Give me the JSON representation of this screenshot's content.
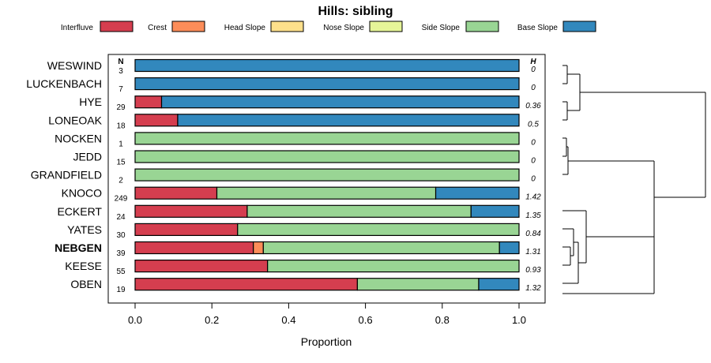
{
  "chart_data": {
    "type": "bar",
    "stacked": true,
    "orientation": "horizontal",
    "title": "Hills: sibling",
    "xlabel": "Proportion",
    "xlim": [
      0,
      1
    ],
    "xticks": [
      "0.0",
      "0.2",
      "0.4",
      "0.6",
      "0.8",
      "1.0"
    ],
    "n_header": "N",
    "h_header": "H",
    "legend": [
      {
        "name": "Interfluve",
        "color": "#D53E4F"
      },
      {
        "name": "Crest",
        "color": "#FC8D59"
      },
      {
        "name": "Head Slope",
        "color": "#FEE08B"
      },
      {
        "name": "Nose Slope",
        "color": "#E6F598"
      },
      {
        "name": "Side Slope",
        "color": "#99D594"
      },
      {
        "name": "Base Slope",
        "color": "#3288BD"
      }
    ],
    "rows": [
      {
        "name": "WESWIND",
        "n": "3",
        "h": "0",
        "bold": false,
        "values": [
          0,
          0,
          0,
          0,
          0,
          1.0
        ]
      },
      {
        "name": "LUCKENBACH",
        "n": "7",
        "h": "0",
        "bold": false,
        "values": [
          0,
          0,
          0,
          0,
          0,
          1.0
        ]
      },
      {
        "name": "HYE",
        "n": "29",
        "h": "0.36",
        "bold": false,
        "values": [
          0.069,
          0,
          0,
          0,
          0,
          0.931
        ]
      },
      {
        "name": "LONEOAK",
        "n": "18",
        "h": "0.5",
        "bold": false,
        "values": [
          0.111,
          0,
          0,
          0,
          0,
          0.889
        ]
      },
      {
        "name": "NOCKEN",
        "n": "1",
        "h": "0",
        "bold": false,
        "values": [
          0,
          0,
          0,
          0,
          1.0,
          0
        ]
      },
      {
        "name": "JEDD",
        "n": "15",
        "h": "0",
        "bold": false,
        "values": [
          0,
          0,
          0,
          0,
          1.0,
          0
        ]
      },
      {
        "name": "GRANDFIELD",
        "n": "2",
        "h": "0",
        "bold": false,
        "values": [
          0,
          0,
          0,
          0,
          1.0,
          0
        ]
      },
      {
        "name": "KNOCO",
        "n": "249",
        "h": "1.42",
        "bold": false,
        "values": [
          0.213,
          0,
          0,
          0,
          0.57,
          0.217
        ]
      },
      {
        "name": "ECKERT",
        "n": "24",
        "h": "1.35",
        "bold": false,
        "values": [
          0.292,
          0,
          0,
          0,
          0.583,
          0.125
        ]
      },
      {
        "name": "YATES",
        "n": "30",
        "h": "0.84",
        "bold": false,
        "values": [
          0.267,
          0,
          0,
          0,
          0.733,
          0
        ]
      },
      {
        "name": "NEBGEN",
        "n": "39",
        "h": "1.31",
        "bold": true,
        "values": [
          0.308,
          0.026,
          0,
          0,
          0.615,
          0.051
        ]
      },
      {
        "name": "KEESE",
        "n": "55",
        "h": "0.93",
        "bold": false,
        "values": [
          0.345,
          0,
          0,
          0,
          0.655,
          0
        ]
      },
      {
        "name": "OBEN",
        "n": "19",
        "h": "1.32",
        "bold": false,
        "values": [
          0.579,
          0,
          0,
          0,
          0.316,
          0.105
        ]
      }
    ]
  }
}
